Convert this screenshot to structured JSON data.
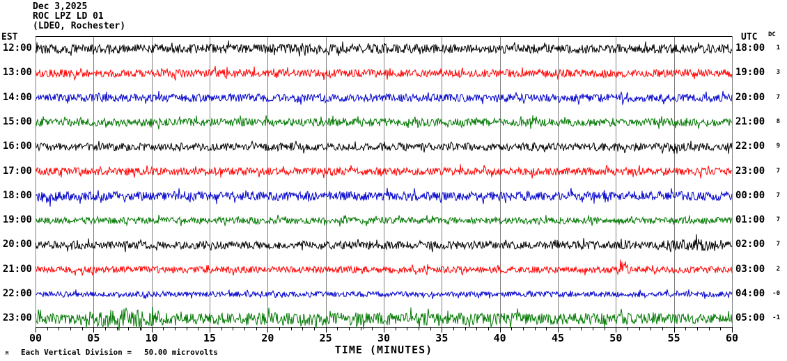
{
  "header": {
    "date": "Dec 3,2025",
    "station": "ROC LPZ LD 01",
    "location": "(LDEO, Rochester)"
  },
  "left_axis": {
    "label": "EST"
  },
  "right_axis": {
    "label": "UTC",
    "dc_header": "DC"
  },
  "x_axis": {
    "title": "TIME (MINUTES)",
    "tick_labels": [
      "00",
      "05",
      "10",
      "15",
      "20",
      "25",
      "30",
      "35",
      "40",
      "45",
      "50",
      "55",
      "60"
    ],
    "minutes_total": 60,
    "major_tick_every_min": 5,
    "minor_tick_every_min": 1
  },
  "footer": {
    "scale_marker": "M",
    "scale_text": "Each Vertical Division =",
    "scale_value": "50.00 microvolts"
  },
  "colors": {
    "grid": "#7d7d7d",
    "axis": "#000000",
    "background": "#ffffff"
  },
  "chart_data": {
    "type": "line",
    "subtype": "helicorder-seismogram",
    "title": "ROC LPZ LD 01 (LDEO, Rochester) — Dec 3,2025",
    "xlabel": "TIME (MINUTES)",
    "x_range": [
      0,
      60
    ],
    "grid": true,
    "row_duration_minutes": 60,
    "vertical_division_microvolts": 50.0,
    "rows": [
      {
        "est": "12:00",
        "utc": "18:00",
        "dc": "1",
        "color": "#000000",
        "base_amp": 7,
        "events": []
      },
      {
        "est": "13:00",
        "utc": "19:00",
        "dc": "3",
        "color": "#ff0000",
        "base_amp": 6,
        "events": []
      },
      {
        "est": "14:00",
        "utc": "20:00",
        "dc": "7",
        "color": "#0000cc",
        "base_amp": 6,
        "events": []
      },
      {
        "est": "15:00",
        "utc": "21:00",
        "dc": "8",
        "color": "#007700",
        "base_amp": 6,
        "events": []
      },
      {
        "est": "16:00",
        "utc": "22:00",
        "dc": "9",
        "color": "#000000",
        "base_amp": 6,
        "events": []
      },
      {
        "est": "17:00",
        "utc": "23:00",
        "dc": "7",
        "color": "#ff0000",
        "base_amp": 6,
        "events": []
      },
      {
        "est": "18:00",
        "utc": "00:00",
        "dc": "7",
        "color": "#0000cc",
        "base_amp": 7,
        "events": [
          {
            "start": 0,
            "peak": 0.8,
            "end": 2.3,
            "amp": 5
          }
        ]
      },
      {
        "est": "19:00",
        "utc": "01:00",
        "dc": "7",
        "color": "#007700",
        "base_amp": 5,
        "events": []
      },
      {
        "est": "20:00",
        "utc": "02:00",
        "dc": "7",
        "color": "#000000",
        "base_amp": 6,
        "events": [
          {
            "start": 52,
            "peak": 58,
            "end": 60,
            "amp": 4
          }
        ]
      },
      {
        "est": "21:00",
        "utc": "03:00",
        "dc": "2",
        "color": "#ff0000",
        "base_amp": 5,
        "events": [
          {
            "start": 50.1,
            "peak": 50.45,
            "end": 51.3,
            "amp": 10
          }
        ]
      },
      {
        "est": "22:00",
        "utc": "04:00",
        "dc": "-0",
        "color": "#0000cc",
        "base_amp": 4,
        "events": []
      },
      {
        "est": "23:00",
        "utc": "05:00",
        "dc": "-1",
        "color": "#007700",
        "base_amp": 8,
        "events": [
          {
            "start": 3.2,
            "peak": 7.6,
            "end": 11.6,
            "amp": 9
          },
          {
            "start": 11.6,
            "peak": 25,
            "end": 60,
            "amp": 2
          }
        ]
      }
    ]
  }
}
